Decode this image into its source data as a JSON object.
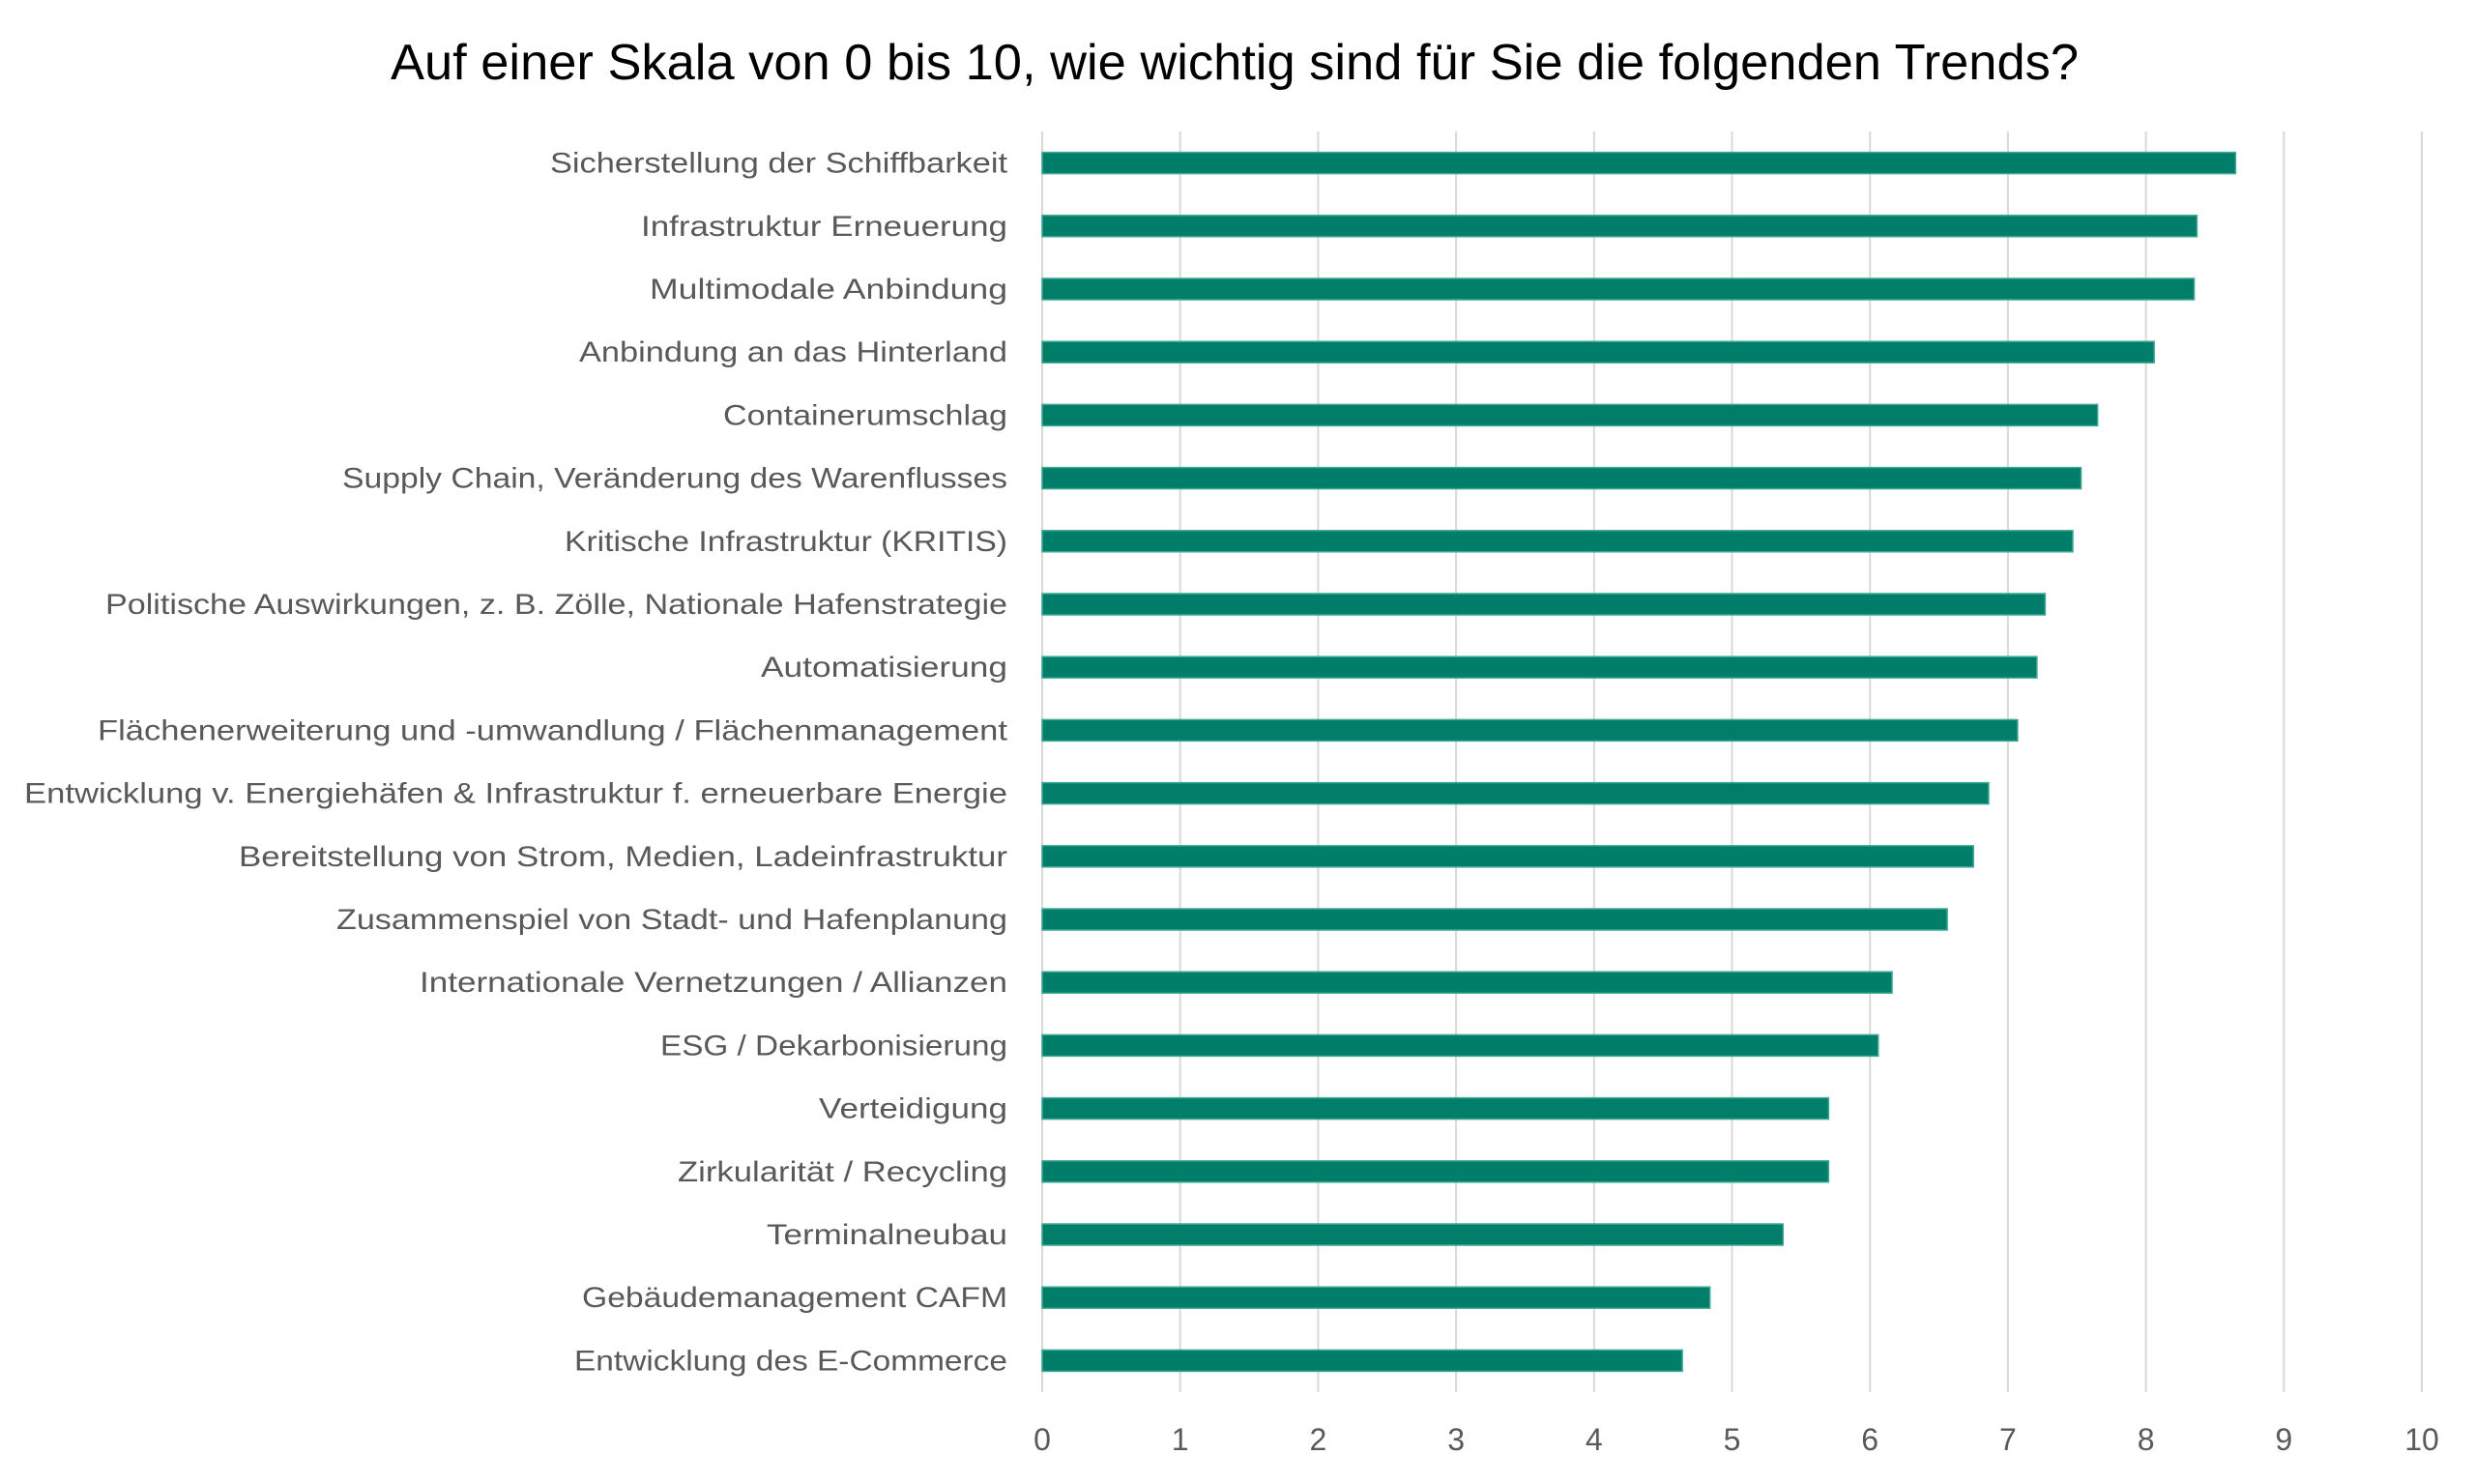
{
  "chart_data": {
    "type": "bar",
    "orientation": "horizontal",
    "title": "Auf einer Skala von 0 bis 10, wie wichtig sind für Sie die folgenden Trends?",
    "xlabel": "",
    "ylabel": "",
    "xlim": [
      0,
      10
    ],
    "grid": true,
    "legend": "none",
    "x_ticks": [
      "0",
      "1",
      "2",
      "3",
      "4",
      "5",
      "6",
      "7",
      "8",
      "9",
      "10"
    ],
    "categories": [
      "Sicherstellung der Schiffbarkeit",
      "Infrastruktur Erneuerung",
      "Multimodale Anbindung",
      "Anbindung an das Hinterland",
      "Containerumschlag",
      "Supply Chain, Veränderung des Warenflusses",
      "Kritische Infrastruktur (KRITIS)",
      "Politische Auswirkungen, z. B. Zölle, Nationale Hafenstrategie",
      "Automatisierung",
      "Flächenerweiterung und -umwandlung / Flächenmanagement",
      "Entwicklung v. Energiehäfen & Infrastruktur f. erneuerbare Energie",
      "Bereitstellung von Strom, Medien, Ladeinfrastruktur",
      "Zusammenspiel von Stadt- und Hafenplanung",
      "Internationale Vernetzungen / Allianzen",
      "ESG / Dekarbonisierung",
      "Verteidigung",
      "Zirkularität / Recycling",
      "Terminalneubau",
      "Gebäudemanagement CAFM",
      "Entwicklung des E-Commerce"
    ],
    "values": [
      8.65,
      8.37,
      8.35,
      8.06,
      7.65,
      7.53,
      7.47,
      7.27,
      7.21,
      7.07,
      6.86,
      6.75,
      6.56,
      6.16,
      6.06,
      5.7,
      5.7,
      5.37,
      4.84,
      4.64
    ],
    "colors": {
      "bar": "#007e69",
      "bar_edge": "#3fa894",
      "gridline": "#d9d9d9",
      "label_text": "#595959",
      "title_text": "#000000"
    }
  }
}
